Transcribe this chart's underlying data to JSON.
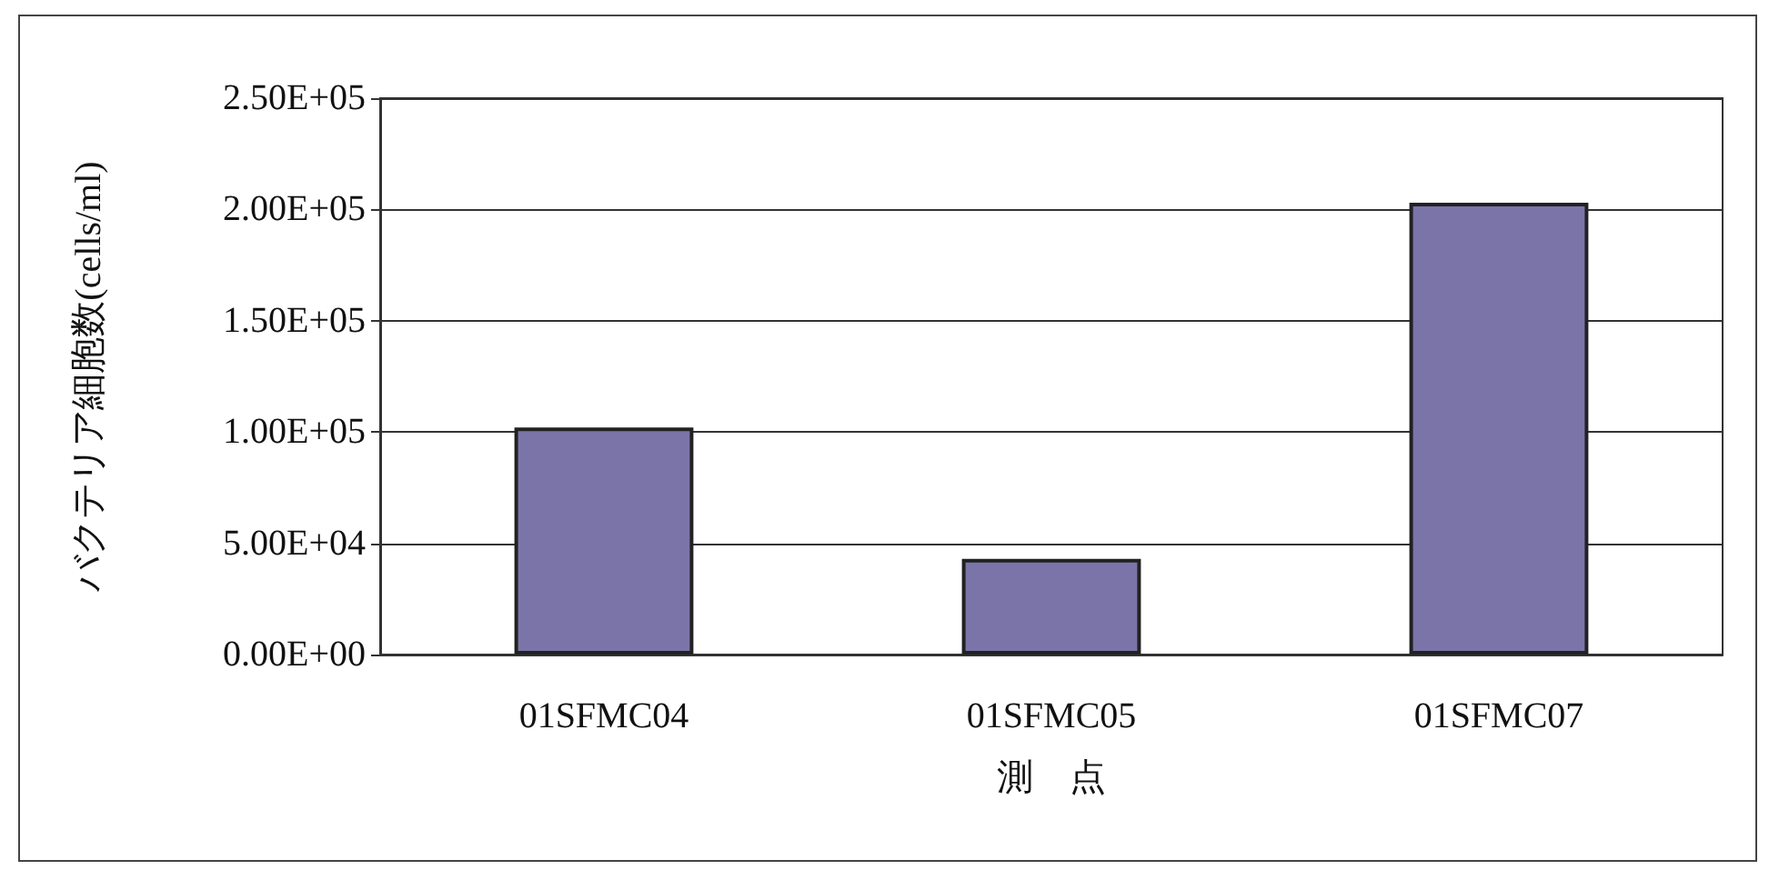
{
  "chart_data": {
    "type": "bar",
    "xlabel": "測　点",
    "ylabel": "バクテリア細胞数(cells/ml)",
    "categories": [
      "01SFMC04",
      "01SFMC05",
      "01SFMC07"
    ],
    "values": [
      102000,
      43000,
      203000
    ],
    "color": "#7b74a8",
    "ylim": [
      0,
      250000
    ],
    "yticks": [
      {
        "value": 0,
        "label": "0.00E+00"
      },
      {
        "value": 50000,
        "label": "5.00E+04"
      },
      {
        "value": 100000,
        "label": "1.00E+05"
      },
      {
        "value": 150000,
        "label": "1.50E+05"
      },
      {
        "value": 200000,
        "label": "2.00E+05"
      },
      {
        "value": 250000,
        "label": "2.50E+05"
      }
    ],
    "grid": "y"
  }
}
